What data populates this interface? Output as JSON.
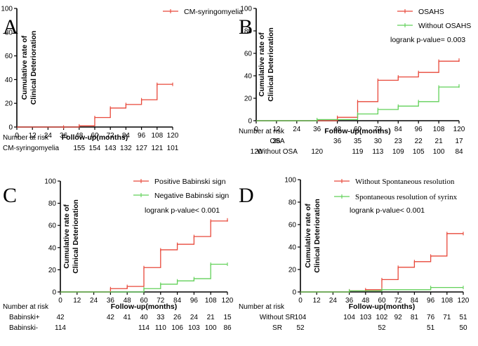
{
  "colors": {
    "red": "#e8483a",
    "green": "#62d159",
    "axis": "#000000"
  },
  "chart_data": [
    {
      "id": "A",
      "type": "line",
      "step": true,
      "letter": "A",
      "ylabel": [
        "Cumulative rate of",
        "Clinical Deterioration"
      ],
      "xlabel": "Follow-up(months)",
      "xlim": [
        0,
        120
      ],
      "ylim": [
        0,
        100
      ],
      "xticks": [
        0,
        12,
        24,
        36,
        48,
        60,
        72,
        84,
        96,
        108,
        120
      ],
      "yticks": [
        0,
        20,
        40,
        60,
        80,
        100
      ],
      "series": [
        {
          "name": "CM-syringomyelia",
          "color": "#e8483a",
          "x": [
            0,
            36,
            48,
            60,
            72,
            84,
            96,
            108,
            120
          ],
          "y": [
            0,
            0,
            1,
            8,
            16,
            19,
            23,
            36,
            36
          ]
        }
      ],
      "pvalue": "",
      "risk_title": "Number at risk",
      "risk_rows": [
        {
          "label": "CM-syringomyelia",
          "values": [
            {
              "x": 48,
              "v": "155"
            },
            {
              "x": 60,
              "v": "154"
            },
            {
              "x": 72,
              "v": "143"
            },
            {
              "x": 84,
              "v": "132"
            },
            {
              "x": 96,
              "v": "127"
            },
            {
              "x": 108,
              "v": "121"
            },
            {
              "x": 120,
              "v": "101"
            }
          ]
        }
      ]
    },
    {
      "id": "B",
      "type": "line",
      "step": true,
      "letter": "B",
      "ylabel": [
        "Cumulative rate of",
        "Clinical Deterioration"
      ],
      "xlabel": "Follow-up(months)",
      "xlim": [
        0,
        120
      ],
      "ylim": [
        0,
        100
      ],
      "xticks": [
        0,
        12,
        24,
        36,
        48,
        60,
        72,
        84,
        96,
        108,
        120
      ],
      "yticks": [
        0,
        20,
        40,
        60,
        80,
        100
      ],
      "series": [
        {
          "name": "OSAHS",
          "color": "#e8483a",
          "x": [
            0,
            48,
            60,
            72,
            84,
            96,
            108,
            120
          ],
          "y": [
            0,
            3,
            17,
            36,
            39,
            43,
            53,
            54
          ]
        },
        {
          "name": "Without OSAHS",
          "color": "#62d159",
          "x": [
            0,
            36,
            60,
            72,
            84,
            96,
            108,
            120
          ],
          "y": [
            0,
            1,
            6,
            10,
            13,
            17,
            30,
            31
          ]
        }
      ],
      "pvalue": "logrank p-value= 0.003",
      "risk_title": "Number at risk",
      "risk_rows": [
        {
          "label": "OSA",
          "values": [
            {
              "x": 12,
              "v": "36"
            },
            {
              "x": 48,
              "v": "36"
            },
            {
              "x": 60,
              "v": "35"
            },
            {
              "x": 72,
              "v": "30"
            },
            {
              "x": 84,
              "v": "23"
            },
            {
              "x": 96,
              "v": "22"
            },
            {
              "x": 108,
              "v": "21"
            },
            {
              "x": 120,
              "v": "17"
            }
          ]
        },
        {
          "label": "Without OSA",
          "values": [
            {
              "x": 0,
              "v": "120"
            },
            {
              "x": 36,
              "v": "120"
            },
            {
              "x": 60,
              "v": "119"
            },
            {
              "x": 72,
              "v": "113"
            },
            {
              "x": 84,
              "v": "109"
            },
            {
              "x": 96,
              "v": "105"
            },
            {
              "x": 108,
              "v": "100"
            },
            {
              "x": 120,
              "v": "84"
            }
          ]
        }
      ]
    },
    {
      "id": "C",
      "type": "line",
      "step": true,
      "letter": "C",
      "ylabel": [
        "Cumulative rate of",
        "Clinical Deterioration"
      ],
      "xlabel": "Follow-up(months)",
      "xlim": [
        0,
        120
      ],
      "ylim": [
        0,
        100
      ],
      "xticks": [
        0,
        12,
        24,
        36,
        48,
        60,
        72,
        84,
        96,
        108,
        120
      ],
      "yticks": [
        0,
        20,
        40,
        60,
        80,
        100
      ],
      "series": [
        {
          "name": "Positive Babinski sign",
          "color": "#e8483a",
          "x": [
            0,
            36,
            48,
            60,
            72,
            84,
            96,
            108,
            120
          ],
          "y": [
            0,
            3,
            5,
            22,
            38,
            43,
            50,
            64,
            65
          ]
        },
        {
          "name": "Negative Babinski sign",
          "color": "#62d159",
          "x": [
            0,
            60,
            72,
            84,
            96,
            108,
            120
          ],
          "y": [
            0,
            3,
            7,
            10,
            12,
            25,
            25
          ]
        }
      ],
      "pvalue": "logrank p-value< 0.001",
      "risk_title": "Number at risk",
      "risk_rows": [
        {
          "label": "Babinski+",
          "values": [
            {
              "x": 0,
              "v": "42"
            },
            {
              "x": 36,
              "v": "42"
            },
            {
              "x": 48,
              "v": "41"
            },
            {
              "x": 60,
              "v": "40"
            },
            {
              "x": 72,
              "v": "33"
            },
            {
              "x": 84,
              "v": "26"
            },
            {
              "x": 96,
              "v": "24"
            },
            {
              "x": 108,
              "v": "21"
            },
            {
              "x": 120,
              "v": "15"
            }
          ]
        },
        {
          "label": "Babinski-",
          "values": [
            {
              "x": 0,
              "v": "114"
            },
            {
              "x": 60,
              "v": "114"
            },
            {
              "x": 72,
              "v": "110"
            },
            {
              "x": 84,
              "v": "106"
            },
            {
              "x": 96,
              "v": "103"
            },
            {
              "x": 108,
              "v": "100"
            },
            {
              "x": 120,
              "v": "86"
            }
          ]
        }
      ]
    },
    {
      "id": "D",
      "type": "line",
      "step": true,
      "letter": "D",
      "ylabel": [
        "Cumulative rate of",
        "Clinical Deterioration"
      ],
      "xlabel": "Follow-up(months)",
      "xlim": [
        0,
        120
      ],
      "ylim": [
        0,
        100
      ],
      "xticks": [
        0,
        12,
        24,
        36,
        48,
        60,
        72,
        84,
        96,
        108,
        120
      ],
      "yticks": [
        0,
        20,
        40,
        60,
        80,
        100
      ],
      "series": [
        {
          "name": "Without Spontaneous resolution",
          "color": "#e8483a",
          "x": [
            0,
            36,
            48,
            60,
            72,
            84,
            96,
            108,
            120
          ],
          "y": [
            0,
            1,
            2,
            11,
            22,
            27,
            32,
            52,
            52
          ]
        },
        {
          "name": "Spontaneous resolution of syrinx",
          "color": "#62d159",
          "x": [
            0,
            36,
            60,
            96,
            120
          ],
          "y": [
            0,
            1,
            2,
            4,
            4
          ]
        }
      ],
      "pvalue": "logrank p-value< 0.001",
      "risk_title": "Number at risk",
      "risk_rows": [
        {
          "label": "Without SR",
          "values": [
            {
              "x": 0,
              "v": "104"
            },
            {
              "x": 36,
              "v": "104"
            },
            {
              "x": 48,
              "v": "103"
            },
            {
              "x": 60,
              "v": "102"
            },
            {
              "x": 72,
              "v": "92"
            },
            {
              "x": 84,
              "v": "81"
            },
            {
              "x": 96,
              "v": "76"
            },
            {
              "x": 108,
              "v": "71"
            },
            {
              "x": 120,
              "v": "51"
            }
          ]
        },
        {
          "label": "SR",
          "values": [
            {
              "x": 0,
              "v": "52"
            },
            {
              "x": 60,
              "v": "52"
            },
            {
              "x": 96,
              "v": "51"
            },
            {
              "x": 120,
              "v": "50"
            }
          ]
        }
      ]
    }
  ]
}
